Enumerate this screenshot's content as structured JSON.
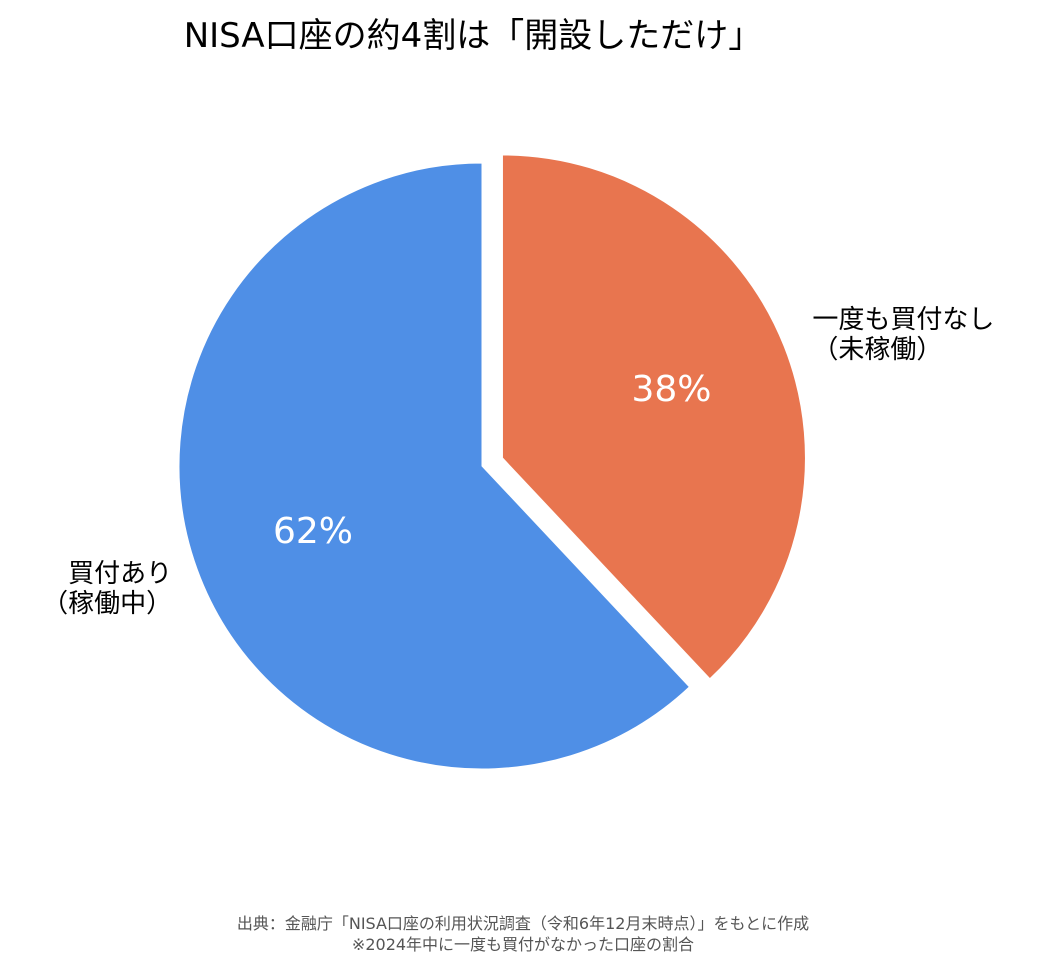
{
  "chart_data": {
    "type": "pie",
    "title": "NISA口座の約4割は「開設しただけ」",
    "categories": [
      "買付あり\n（稼働中）",
      "一度も買付なし\n（未稼働）"
    ],
    "values": [
      62,
      38
    ],
    "value_labels": [
      "62%",
      "38%"
    ],
    "colors": [
      "#4f8fe6",
      "#e8754f"
    ],
    "source": "出典：金融庁「NISA口座の利用状況調査（令和6年12月末時点）」をもとに作成",
    "note": "※2024年中に一度も買付がなかった口座の割合"
  }
}
